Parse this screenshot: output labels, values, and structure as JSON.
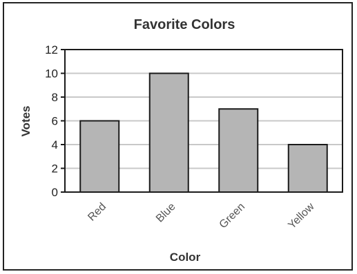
{
  "chart_data": {
    "type": "bar",
    "title": "Favorite Colors",
    "xlabel": "Color",
    "ylabel": "Votes",
    "categories": [
      "Red",
      "Blue",
      "Green",
      "Yellow"
    ],
    "values": [
      6,
      10,
      7,
      4
    ],
    "ylim": [
      0,
      12
    ],
    "yticks": [
      0,
      2,
      4,
      6,
      8,
      10,
      12
    ],
    "grid": true,
    "colors": {
      "bar_fill": "#b5b5b5",
      "bar_stroke": "#1a1a1a",
      "grid": "#c8c8c8",
      "axis": "#1a1a1a",
      "text": "#333333"
    }
  }
}
